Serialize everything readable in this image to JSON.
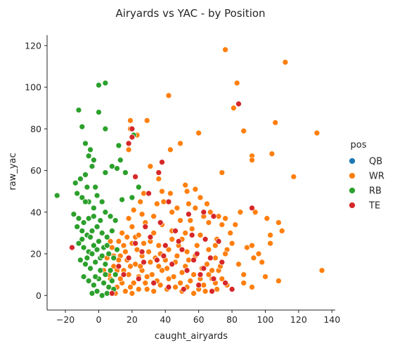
{
  "chart_data": {
    "type": "scatter",
    "title": "Airyards vs YAC - by Position",
    "xlabel": "caught_airyards",
    "ylabel": "raw_yac",
    "xlim": [
      -31,
      142
    ],
    "ylim": [
      -7,
      125
    ],
    "xticks": [
      -20,
      0,
      20,
      40,
      60,
      80,
      100,
      120,
      140
    ],
    "yticks": [
      0,
      20,
      40,
      60,
      80,
      100,
      120
    ],
    "grid": false,
    "legend": {
      "title": "pos",
      "placement": "right"
    },
    "series": [
      {
        "name": "QB",
        "color": "#1f77b4",
        "points": []
      },
      {
        "name": "WR",
        "color": "#ff7f0e",
        "points": [
          [
            76,
            118
          ],
          [
            112,
            112
          ],
          [
            83,
            102
          ],
          [
            42,
            96
          ],
          [
            131,
            78
          ],
          [
            106,
            83
          ],
          [
            87,
            79
          ],
          [
            81,
            90
          ],
          [
            19,
            84
          ],
          [
            29,
            84
          ],
          [
            60,
            78
          ],
          [
            23,
            77
          ],
          [
            49,
            73
          ],
          [
            43,
            70
          ],
          [
            92,
            67
          ],
          [
            92,
            65
          ],
          [
            104,
            68
          ],
          [
            117,
            57
          ],
          [
            74,
            59
          ],
          [
            19,
            80
          ],
          [
            18,
            70
          ],
          [
            31,
            62
          ],
          [
            36,
            56
          ],
          [
            27,
            49
          ],
          [
            43,
            49
          ],
          [
            52,
            53
          ],
          [
            53,
            50
          ],
          [
            58,
            51
          ],
          [
            61,
            47
          ],
          [
            65,
            44
          ],
          [
            54,
            44
          ],
          [
            39,
            45
          ],
          [
            47,
            42
          ],
          [
            58,
            42
          ],
          [
            67,
            40
          ],
          [
            72,
            38
          ],
          [
            76,
            37
          ],
          [
            85,
            40
          ],
          [
            94,
            40
          ],
          [
            101,
            37
          ],
          [
            108,
            35
          ],
          [
            110,
            31
          ],
          [
            103,
            29
          ],
          [
            103,
            25
          ],
          [
            96,
            20
          ],
          [
            89,
            23
          ],
          [
            92,
            24
          ],
          [
            80,
            25
          ],
          [
            71,
            27
          ],
          [
            79,
            30
          ],
          [
            82,
            34
          ],
          [
            74,
            34
          ],
          [
            66,
            35
          ],
          [
            55,
            36
          ],
          [
            49,
            36
          ],
          [
            33,
            38
          ],
          [
            26,
            39
          ],
          [
            20,
            33
          ],
          [
            22,
            28
          ],
          [
            31,
            26
          ],
          [
            36,
            24
          ],
          [
            44,
            27
          ],
          [
            52,
            30
          ],
          [
            61,
            29
          ],
          [
            70,
            24
          ],
          [
            77,
            22
          ],
          [
            84,
            15
          ],
          [
            87,
            10
          ],
          [
            93,
            18
          ],
          [
            98,
            16
          ],
          [
            108,
            7
          ],
          [
            100,
            9
          ],
          [
            134,
            12
          ],
          [
            87,
            6
          ],
          [
            92,
            4
          ],
          [
            72,
            12
          ],
          [
            68,
            8
          ],
          [
            63,
            5
          ],
          [
            57,
            10
          ],
          [
            52,
            14
          ],
          [
            47,
            19
          ],
          [
            41,
            13
          ],
          [
            35,
            7
          ],
          [
            29,
            3
          ],
          [
            24,
            9
          ],
          [
            19,
            14
          ],
          [
            13,
            19
          ],
          [
            8,
            23
          ],
          [
            5,
            18
          ],
          [
            3,
            12
          ],
          [
            7,
            8
          ],
          [
            11,
            4
          ],
          [
            16,
            2
          ],
          [
            21,
            6
          ],
          [
            26,
            12
          ],
          [
            31,
            16
          ],
          [
            37,
            20
          ],
          [
            42,
            22
          ],
          [
            46,
            16
          ],
          [
            50,
            11
          ],
          [
            55,
            7
          ],
          [
            60,
            3
          ],
          [
            65,
            15
          ],
          [
            70,
            18
          ],
          [
            74,
            8
          ],
          [
            77,
            5
          ],
          [
            66,
            22
          ],
          [
            59,
            24
          ],
          [
            53,
            21
          ],
          [
            48,
            24
          ],
          [
            44,
            31
          ],
          [
            38,
            34
          ],
          [
            33,
            30
          ],
          [
            28,
            35
          ],
          [
            24,
            29
          ],
          [
            20,
            25
          ],
          [
            16,
            21
          ],
          [
            12,
            17
          ],
          [
            9,
            14
          ],
          [
            6,
            10
          ],
          [
            10,
            1
          ],
          [
            14,
            6
          ],
          [
            18,
            10
          ],
          [
            22,
            15
          ],
          [
            26,
            19
          ],
          [
            30,
            21
          ],
          [
            34,
            18
          ],
          [
            38,
            12
          ],
          [
            42,
            8
          ],
          [
            46,
            4
          ],
          [
            50,
            2
          ],
          [
            54,
            17
          ],
          [
            58,
            19
          ],
          [
            62,
            13
          ],
          [
            66,
            10
          ],
          [
            70,
            6
          ],
          [
            73,
            14
          ],
          [
            76,
            20
          ],
          [
            40,
            17
          ],
          [
            36,
            14
          ],
          [
            32,
            10
          ],
          [
            28,
            6
          ],
          [
            24,
            3
          ],
          [
            20,
            1
          ],
          [
            17,
            17
          ],
          [
            23,
            22
          ],
          [
            27,
            25
          ],
          [
            15,
            12
          ],
          [
            13,
            8
          ],
          [
            11,
            12
          ],
          [
            19,
            4
          ],
          [
            25,
            14
          ],
          [
            29,
            9
          ],
          [
            33,
            2
          ],
          [
            37,
            5
          ],
          [
            41,
            3
          ],
          [
            45,
            9
          ],
          [
            49,
            6
          ],
          [
            53,
            4
          ],
          [
            57,
            1
          ],
          [
            61,
            8
          ],
          [
            64,
            2
          ],
          [
            68,
            12
          ],
          [
            71,
            3
          ],
          [
            44,
            40
          ],
          [
            50,
            27
          ],
          [
            56,
            32
          ],
          [
            63,
            38
          ],
          [
            35,
            44
          ],
          [
            38,
            50
          ],
          [
            17,
            28
          ],
          [
            15,
            24
          ],
          [
            21,
            41
          ],
          [
            25,
            45
          ],
          [
            14,
            30
          ],
          [
            10,
            36
          ],
          [
            9,
            19
          ],
          [
            7,
            26
          ],
          [
            12,
            26
          ],
          [
            18,
            37
          ]
        ]
      },
      {
        "name": "RB",
        "color": "#2ca02c",
        "points": [
          [
            0,
            101
          ],
          [
            4,
            102
          ],
          [
            -12,
            89
          ],
          [
            0,
            88
          ],
          [
            -10,
            81
          ],
          [
            4,
            80
          ],
          [
            -8,
            73
          ],
          [
            -5,
            70
          ],
          [
            -6,
            67
          ],
          [
            -3,
            65
          ],
          [
            -4,
            62
          ],
          [
            -8,
            58
          ],
          [
            -14,
            54
          ],
          [
            -11,
            56
          ],
          [
            -7,
            52
          ],
          [
            -2,
            52
          ],
          [
            -1,
            48
          ],
          [
            2,
            45
          ],
          [
            -13,
            49
          ],
          [
            -10,
            47
          ],
          [
            -6,
            45
          ],
          [
            -3,
            42
          ],
          [
            -15,
            39
          ],
          [
            -12,
            37
          ],
          [
            -9,
            35
          ],
          [
            -6,
            37
          ],
          [
            -3,
            38
          ],
          [
            1,
            36
          ],
          [
            4,
            40
          ],
          [
            7,
            38
          ],
          [
            10,
            36
          ],
          [
            -13,
            33
          ],
          [
            -10,
            31
          ],
          [
            -7,
            29
          ],
          [
            -4,
            31
          ],
          [
            -1,
            33
          ],
          [
            2,
            30
          ],
          [
            5,
            28
          ],
          [
            8,
            31
          ],
          [
            -12,
            25
          ],
          [
            -9,
            23
          ],
          [
            -6,
            21
          ],
          [
            -3,
            24
          ],
          [
            0,
            26
          ],
          [
            3,
            23
          ],
          [
            6,
            20
          ],
          [
            9,
            18
          ],
          [
            -11,
            17
          ],
          [
            -8,
            15
          ],
          [
            -5,
            13
          ],
          [
            -2,
            16
          ],
          [
            1,
            18
          ],
          [
            4,
            15
          ],
          [
            7,
            12
          ],
          [
            10,
            10
          ],
          [
            -9,
            9
          ],
          [
            -6,
            7
          ],
          [
            -3,
            5
          ],
          [
            0,
            8
          ],
          [
            3,
            6
          ],
          [
            6,
            4
          ],
          [
            9,
            3
          ],
          [
            -4,
            1
          ],
          [
            -1,
            2
          ],
          [
            2,
            0
          ],
          [
            5,
            1
          ],
          [
            8,
            7
          ],
          [
            -25,
            48
          ],
          [
            -5,
            28
          ],
          [
            -8,
            45
          ],
          [
            11,
            61
          ],
          [
            13,
            65
          ],
          [
            21,
            77
          ],
          [
            8,
            62
          ],
          [
            4,
            59
          ],
          [
            16,
            59
          ],
          [
            24,
            52
          ],
          [
            12,
            72
          ],
          [
            14,
            46
          ],
          [
            20,
            47
          ],
          [
            -7,
            18
          ],
          [
            -4,
            20
          ],
          [
            -1,
            22
          ],
          [
            2,
            19
          ],
          [
            5,
            24
          ],
          [
            11,
            22
          ],
          [
            -10,
            27
          ],
          [
            -2,
            9
          ],
          [
            1,
            12
          ],
          [
            4,
            10
          ]
        ]
      },
      {
        "name": "TE",
        "color": "#d62728",
        "points": [
          [
            20,
            80
          ],
          [
            20,
            76
          ],
          [
            18,
            73
          ],
          [
            36,
            59
          ],
          [
            38,
            64
          ],
          [
            84,
            92
          ],
          [
            92,
            42
          ],
          [
            -16,
            23
          ],
          [
            22,
            57
          ],
          [
            30,
            49
          ],
          [
            42,
            45
          ],
          [
            54,
            39
          ],
          [
            63,
            40
          ],
          [
            69,
            38
          ],
          [
            28,
            33
          ],
          [
            37,
            35
          ],
          [
            46,
            31
          ],
          [
            56,
            29
          ],
          [
            64,
            27
          ],
          [
            72,
            26
          ],
          [
            22,
            25
          ],
          [
            31,
            28
          ],
          [
            40,
            24
          ],
          [
            50,
            22
          ],
          [
            59,
            20
          ],
          [
            67,
            18
          ],
          [
            74,
            16
          ],
          [
            18,
            18
          ],
          [
            27,
            16
          ],
          [
            35,
            17
          ],
          [
            44,
            15
          ],
          [
            53,
            12
          ],
          [
            61,
            10
          ],
          [
            69,
            8
          ],
          [
            76,
            6
          ],
          [
            80,
            3
          ],
          [
            15,
            10
          ],
          [
            24,
            8
          ],
          [
            33,
            6
          ],
          [
            42,
            4
          ],
          [
            51,
            3
          ],
          [
            60,
            5
          ],
          [
            68,
            2
          ],
          [
            26,
            21
          ],
          [
            39,
            19
          ],
          [
            48,
            26
          ],
          [
            57,
            17
          ],
          [
            12,
            14
          ],
          [
            8,
            1
          ],
          [
            63,
            13
          ]
        ]
      }
    ]
  }
}
